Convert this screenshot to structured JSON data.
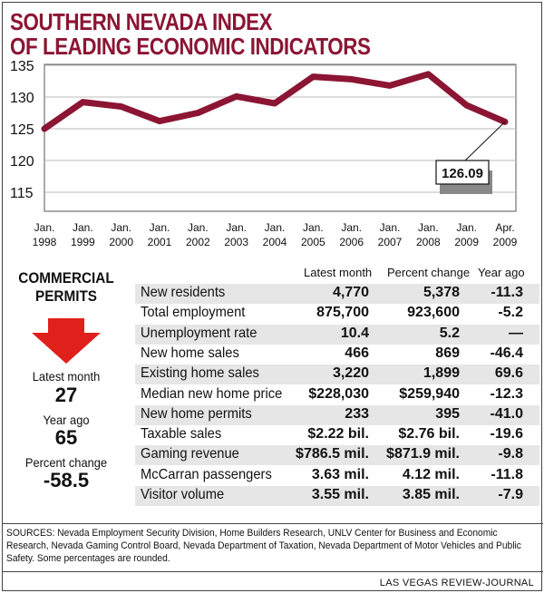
{
  "title_line1": "SOUTHERN NEVADA INDEX",
  "title_line2": "OF LEADING ECONOMIC INDICATORS",
  "chart_data": {
    "type": "line",
    "title": "Southern Nevada Index of Leading Economic Indicators",
    "x": [
      [
        "Jan.",
        "1998"
      ],
      [
        "Jan.",
        "1999"
      ],
      [
        "Jan.",
        "2000"
      ],
      [
        "Jan.",
        "2001"
      ],
      [
        "Jan.",
        "2002"
      ],
      [
        "Jan.",
        "2003"
      ],
      [
        "Jan.",
        "2004"
      ],
      [
        "Jan.",
        "2005"
      ],
      [
        "Jan.",
        "2006"
      ],
      [
        "Jan.",
        "2007"
      ],
      [
        "Jan.",
        "2008"
      ],
      [
        "Jan.",
        "2009"
      ],
      [
        "Apr.",
        "2009"
      ]
    ],
    "values": [
      125.0,
      129.2,
      128.5,
      126.2,
      127.5,
      130.1,
      129.0,
      133.2,
      132.8,
      131.8,
      133.6,
      128.7,
      126.09
    ],
    "yticks": [
      115,
      120,
      125,
      130,
      135
    ],
    "ylim": [
      112,
      136
    ],
    "grid": true,
    "annotation": "126.09",
    "line_color": "#8b1533"
  },
  "permits": {
    "heading_1": "COMMERCIAL",
    "heading_2": "PERMITS",
    "latest_label": "Latest month",
    "latest_value": "27",
    "yearago_label": "Year ago",
    "yearago_value": "65",
    "change_label": "Percent change",
    "change_value": "-58.5",
    "arrow_color": "#e0201b"
  },
  "table": {
    "headers": [
      "Latest month",
      "Percent change",
      "Year ago"
    ],
    "rows": [
      {
        "name": "New residents",
        "latest": "4,770",
        "change": "5,378",
        "ago": "-11.3"
      },
      {
        "name": "Total employment",
        "latest": "875,700",
        "change": "923,600",
        "ago": "-5.2"
      },
      {
        "name": "Unemployment rate",
        "latest": "10.4",
        "change": "5.2",
        "ago": "—"
      },
      {
        "name": "New home sales",
        "latest": "466",
        "change": "869",
        "ago": "-46.4"
      },
      {
        "name": "Existing home sales",
        "latest": "3,220",
        "change": "1,899",
        "ago": "69.6"
      },
      {
        "name": "Median new home price",
        "latest": "$228,030",
        "change": "$259,940",
        "ago": "-12.3"
      },
      {
        "name": "New home permits",
        "latest": "233",
        "change": "395",
        "ago": "-41.0"
      },
      {
        "name": "Taxable sales",
        "latest": "$2.22 bil.",
        "change": "$2.76 bil.",
        "ago": "-19.6"
      },
      {
        "name": "Gaming revenue",
        "latest": "$786.5 mil.",
        "change": "$871.9 mil.",
        "ago": "-9.8"
      },
      {
        "name": "McCarran passengers",
        "latest": "3.63 mil.",
        "change": "4.12 mil.",
        "ago": "-11.8"
      },
      {
        "name": "Visitor volume",
        "latest": "3.55 mil.",
        "change": "3.85 mil.",
        "ago": "-7.9"
      }
    ]
  },
  "sources": "SOURCES: Nevada Employment Security Division, Home Builders Research, UNLV Center for Business and Economic Research, Nevada Gaming Control Board, Nevada Department of Taxation, Nevada Department of Motor Vehicles and Public Safety. Some percentages are rounded.",
  "credit": "LAS VEGAS REVIEW-JOURNAL"
}
